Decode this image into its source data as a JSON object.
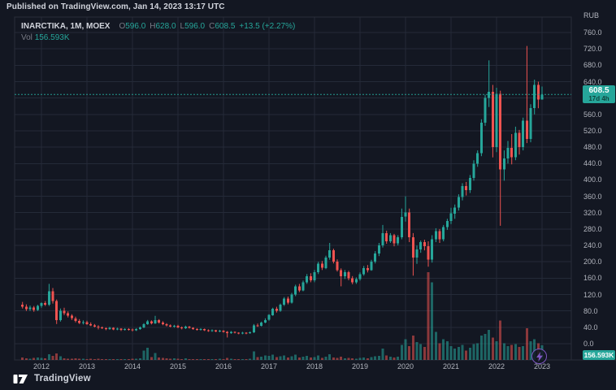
{
  "header": {
    "published": "Published on TradingView.com, Jan 14, 2023 13:17 UTC"
  },
  "legend": {
    "symbol": "INARCTIKA, 1M, MOEX",
    "o_label": "O",
    "o": "596.0",
    "h_label": "H",
    "h": "628.0",
    "l_label": "L",
    "l": "596.0",
    "c_label": "C",
    "c": "608.5",
    "change": "+13.5 (+2.27%)",
    "vol_label": "Vol",
    "vol": "156.593K"
  },
  "axis": {
    "currency": "RUB",
    "last_price": "608.5",
    "countdown": "17d 4h",
    "volume_badge": "156.593K"
  },
  "footer": {
    "brand": "TradingView"
  },
  "icons": {
    "boost": "lightning-bolt",
    "logo": "tradingview-mark"
  },
  "colors": {
    "background": "#131722",
    "grid": "#242a38",
    "frame": "#2a2e39",
    "up": "#26a69a",
    "down": "#ef5350",
    "text_primary": "#d1d4dc",
    "text_secondary": "#b2b5be",
    "text_dim": "#787b86",
    "boost_purple": "#7e57c2"
  },
  "chart_data": {
    "type": "candlestick+volume",
    "title": "INARCTIKA, 1M, MOEX",
    "symbol": "INARCTIKA",
    "timeframe": "1M",
    "exchange": "MOEX",
    "currency": "RUB",
    "start_month": "2011-08",
    "price_axis": {
      "min": 0,
      "max": 760,
      "step": 40
    },
    "years": [
      "2012",
      "2013",
      "2014",
      "2015",
      "2016",
      "2017",
      "2018",
      "2019",
      "2020",
      "2021",
      "2022",
      "2023"
    ],
    "last_close": 608.5,
    "last_volume_k": 156.593,
    "ohlcv_note": "monthly [open,high,low,close,volume_thousands], values estimated from gridlines",
    "ohlcv": [
      [
        95,
        102,
        86,
        90,
        25
      ],
      [
        90,
        96,
        80,
        84,
        18
      ],
      [
        84,
        93,
        80,
        88,
        15
      ],
      [
        88,
        92,
        78,
        82,
        20
      ],
      [
        82,
        95,
        80,
        92,
        28
      ],
      [
        92,
        101,
        88,
        99,
        22
      ],
      [
        99,
        104,
        92,
        95,
        16
      ],
      [
        95,
        146,
        92,
        128,
        60
      ],
      [
        128,
        136,
        98,
        104,
        45
      ],
      [
        104,
        108,
        48,
        58,
        70
      ],
      [
        58,
        86,
        54,
        80,
        40
      ],
      [
        80,
        88,
        70,
        74,
        18
      ],
      [
        74,
        79,
        64,
        68,
        14
      ],
      [
        68,
        72,
        58,
        62,
        12
      ],
      [
        62,
        66,
        52,
        56,
        16
      ],
      [
        56,
        60,
        48,
        51,
        14
      ],
      [
        51,
        57,
        47,
        53,
        12
      ],
      [
        53,
        56,
        46,
        48,
        10
      ],
      [
        48,
        52,
        43,
        45,
        12
      ],
      [
        45,
        48,
        40,
        42,
        10
      ],
      [
        42,
        45,
        35,
        40,
        14
      ],
      [
        40,
        42,
        36,
        38,
        8
      ],
      [
        38,
        40,
        33,
        36,
        10
      ],
      [
        36,
        41,
        34,
        39,
        8
      ],
      [
        39,
        40,
        33,
        35,
        10
      ],
      [
        35,
        39,
        33,
        37,
        8
      ],
      [
        37,
        38,
        31,
        34,
        10
      ],
      [
        34,
        38,
        32,
        36,
        8
      ],
      [
        36,
        38,
        32,
        35,
        10
      ],
      [
        35,
        37,
        30,
        33,
        12
      ],
      [
        33,
        38,
        31,
        36,
        14
      ],
      [
        36,
        42,
        34,
        40,
        18
      ],
      [
        40,
        50,
        38,
        48,
        100
      ],
      [
        48,
        58,
        46,
        55,
        130
      ],
      [
        55,
        57,
        47,
        50,
        30
      ],
      [
        50,
        68,
        48,
        58,
        75
      ],
      [
        58,
        60,
        49,
        52,
        25
      ],
      [
        52,
        55,
        45,
        48,
        20
      ],
      [
        48,
        50,
        42,
        45,
        16
      ],
      [
        45,
        47,
        40,
        42,
        14
      ],
      [
        42,
        46,
        39,
        44,
        18
      ],
      [
        44,
        46,
        38,
        40,
        12
      ],
      [
        40,
        42,
        35,
        38,
        10
      ],
      [
        38,
        44,
        36,
        42,
        16
      ],
      [
        42,
        43,
        37,
        39,
        10
      ],
      [
        39,
        40,
        34,
        36,
        8
      ],
      [
        36,
        38,
        32,
        34,
        10
      ],
      [
        34,
        38,
        32,
        36,
        8
      ],
      [
        36,
        37,
        31,
        33,
        10
      ],
      [
        33,
        35,
        29,
        31,
        8
      ],
      [
        31,
        35,
        29,
        33,
        10
      ],
      [
        33,
        34,
        28,
        30,
        8
      ],
      [
        30,
        34,
        28,
        32,
        12
      ],
      [
        32,
        33,
        27,
        29,
        10
      ],
      [
        29,
        31,
        15,
        26,
        20
      ],
      [
        26,
        31,
        24,
        29,
        12
      ],
      [
        29,
        30,
        25,
        27,
        8
      ],
      [
        27,
        28,
        23,
        25,
        10
      ],
      [
        25,
        29,
        23,
        27,
        8
      ],
      [
        27,
        28,
        23,
        26,
        8
      ],
      [
        26,
        30,
        24,
        28,
        12
      ],
      [
        28,
        48,
        26,
        45,
        90
      ],
      [
        45,
        49,
        41,
        44,
        30
      ],
      [
        44,
        54,
        42,
        52,
        35
      ],
      [
        52,
        62,
        50,
        58,
        50
      ],
      [
        58,
        72,
        56,
        70,
        45
      ],
      [
        70,
        88,
        68,
        85,
        55
      ],
      [
        85,
        90,
        76,
        80,
        30
      ],
      [
        80,
        98,
        78,
        95,
        40
      ],
      [
        95,
        114,
        92,
        110,
        50
      ],
      [
        110,
        115,
        96,
        100,
        28
      ],
      [
        100,
        124,
        98,
        120,
        38
      ],
      [
        120,
        144,
        116,
        140,
        55
      ],
      [
        140,
        146,
        126,
        130,
        26
      ],
      [
        130,
        154,
        128,
        150,
        35
      ],
      [
        150,
        170,
        146,
        165,
        42
      ],
      [
        165,
        172,
        150,
        155,
        24
      ],
      [
        155,
        180,
        150,
        175,
        32
      ],
      [
        175,
        200,
        170,
        195,
        48
      ],
      [
        195,
        202,
        180,
        185,
        22
      ],
      [
        185,
        215,
        182,
        210,
        36
      ],
      [
        210,
        246,
        205,
        228,
        60
      ],
      [
        228,
        232,
        196,
        200,
        26
      ],
      [
        200,
        206,
        176,
        180,
        22
      ],
      [
        180,
        184,
        140,
        165,
        34
      ],
      [
        165,
        180,
        158,
        175,
        18
      ],
      [
        175,
        178,
        155,
        160,
        20
      ],
      [
        160,
        165,
        145,
        150,
        16
      ],
      [
        150,
        162,
        146,
        158,
        14
      ],
      [
        158,
        174,
        154,
        170,
        22
      ],
      [
        170,
        190,
        166,
        185,
        28
      ],
      [
        185,
        192,
        174,
        180,
        18
      ],
      [
        180,
        205,
        178,
        200,
        32
      ],
      [
        200,
        226,
        196,
        220,
        38
      ],
      [
        220,
        246,
        214,
        240,
        45
      ],
      [
        240,
        290,
        235,
        270,
        120
      ],
      [
        270,
        276,
        244,
        250,
        48
      ],
      [
        250,
        270,
        246,
        265,
        36
      ],
      [
        265,
        268,
        238,
        245,
        28
      ],
      [
        245,
        265,
        240,
        260,
        34
      ],
      [
        260,
        330,
        255,
        310,
        160
      ],
      [
        310,
        360,
        298,
        320,
        220
      ],
      [
        320,
        330,
        248,
        260,
        150
      ],
      [
        260,
        270,
        166,
        210,
        260
      ],
      [
        210,
        240,
        195,
        230,
        190
      ],
      [
        230,
        252,
        222,
        248,
        170
      ],
      [
        248,
        254,
        228,
        238,
        140
      ],
      [
        238,
        250,
        188,
        205,
        940
      ],
      [
        205,
        265,
        198,
        255,
        830
      ],
      [
        255,
        282,
        248,
        275,
        300
      ],
      [
        275,
        280,
        246,
        255,
        180
      ],
      [
        255,
        290,
        250,
        285,
        220
      ],
      [
        285,
        305,
        278,
        300,
        200
      ],
      [
        300,
        332,
        292,
        318,
        150
      ],
      [
        318,
        340,
        305,
        332,
        120
      ],
      [
        332,
        365,
        325,
        358,
        140
      ],
      [
        358,
        392,
        350,
        385,
        160
      ],
      [
        385,
        395,
        362,
        375,
        100
      ],
      [
        375,
        412,
        368,
        405,
        130
      ],
      [
        405,
        448,
        398,
        440,
        170
      ],
      [
        440,
        472,
        432,
        465,
        180
      ],
      [
        465,
        548,
        458,
        540,
        260
      ],
      [
        540,
        608,
        532,
        600,
        280
      ],
      [
        600,
        692,
        578,
        615,
        320
      ],
      [
        615,
        632,
        455,
        480,
        240
      ],
      [
        480,
        625,
        468,
        610,
        200
      ],
      [
        610,
        618,
        288,
        426,
        420
      ],
      [
        426,
        472,
        398,
        452,
        180
      ],
      [
        452,
        495,
        440,
        478,
        150
      ],
      [
        478,
        512,
        438,
        455,
        160
      ],
      [
        455,
        530,
        448,
        515,
        170
      ],
      [
        515,
        522,
        462,
        480,
        140
      ],
      [
        480,
        552,
        472,
        545,
        150
      ],
      [
        545,
        727,
        490,
        500,
        340
      ],
      [
        500,
        585,
        492,
        575,
        200
      ],
      [
        575,
        645,
        560,
        632,
        220
      ],
      [
        632,
        640,
        575,
        596,
        180
      ],
      [
        596,
        628,
        596,
        608.5,
        156.593
      ]
    ]
  }
}
